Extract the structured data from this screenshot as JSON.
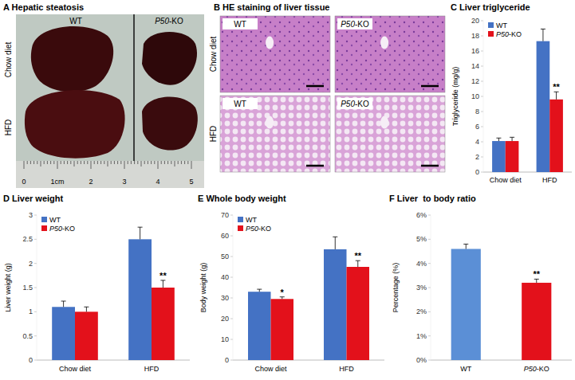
{
  "panel_a": {
    "letter": "A",
    "title": "Hepatic steatosis",
    "columns": [
      "WT",
      "P50-KO"
    ],
    "rows": [
      "Chow diet",
      "HFD"
    ],
    "ruler_labels": [
      "0",
      "1cm",
      "2",
      "3",
      "4",
      "5"
    ]
  },
  "panel_b": {
    "letter": "B",
    "title": "HE staining of liver tissue",
    "columns": [
      "WT",
      "P50-KO"
    ],
    "rows": [
      "Chow diet",
      "HFD"
    ]
  },
  "chart_data": [
    {
      "type": "bar",
      "panel": "C",
      "title": "Liver triglyceride",
      "y_label": "Triglyceride (mg/g)",
      "categories": [
        "Chow diet",
        "HFD"
      ],
      "series": [
        {
          "name": "WT",
          "color": "#4472c4",
          "values": [
            4.1,
            17.3
          ],
          "errors": [
            0.4,
            1.6
          ]
        },
        {
          "name": "P50-KO",
          "color": "#e3111b",
          "values": [
            4.1,
            9.6
          ],
          "errors": [
            0.5,
            1.0
          ],
          "significance": [
            null,
            "**"
          ]
        }
      ],
      "ylim": [
        0,
        20
      ],
      "yticks": [
        0,
        2,
        4,
        6,
        8,
        10,
        12,
        14,
        16,
        18,
        20
      ],
      "grid": false,
      "legend": "top-left"
    },
    {
      "type": "bar",
      "panel": "D",
      "title": "Liver weight",
      "y_label": "Liver weight (g)",
      "categories": [
        "Chow diet",
        "HFD"
      ],
      "series": [
        {
          "name": "WT",
          "color": "#4472c4",
          "values": [
            1.1,
            2.5
          ],
          "errors": [
            0.12,
            0.25
          ]
        },
        {
          "name": "P50-KO",
          "color": "#e3111b",
          "values": [
            1.0,
            1.5
          ],
          "errors": [
            0.1,
            0.15
          ],
          "significance": [
            null,
            "**"
          ]
        }
      ],
      "ylim": [
        0,
        3
      ],
      "yticks": [
        0,
        0.5,
        1,
        1.5,
        2,
        2.5,
        3
      ],
      "grid": false,
      "legend": "top-left"
    },
    {
      "type": "bar",
      "panel": "E",
      "title": "Whole body weight",
      "y_label": "Body weight (g)",
      "categories": [
        "Chow diet",
        "HFD"
      ],
      "series": [
        {
          "name": "WT",
          "color": "#4472c4",
          "values": [
            33,
            53.5
          ],
          "errors": [
            1.2,
            6
          ]
        },
        {
          "name": "P50-KO",
          "color": "#e3111b",
          "values": [
            29.5,
            45
          ],
          "errors": [
            1,
            3
          ],
          "significance": [
            "*",
            "**"
          ]
        }
      ],
      "ylim": [
        0,
        70
      ],
      "yticks": [
        0,
        10,
        20,
        30,
        40,
        50,
        60,
        70
      ],
      "grid": false,
      "legend": "top-left"
    },
    {
      "type": "bar",
      "panel": "F",
      "title": "Liver  to body ratio",
      "y_label": "Percentage (%)",
      "categories": [
        "WT",
        "P50-KO"
      ],
      "series": [
        {
          "name": "Liver to body ratio",
          "colors": [
            "#5b8fd6",
            "#e3111b"
          ],
          "values": [
            4.6,
            3.2
          ],
          "errors": [
            0.2,
            0.15
          ],
          "significance": [
            null,
            "**"
          ]
        }
      ],
      "ylim": [
        0,
        6
      ],
      "yticks": [
        {
          "value": 0,
          "label": "0%"
        },
        {
          "value": 1,
          "label": "1%"
        },
        {
          "value": 2,
          "label": "2%"
        },
        {
          "value": 3,
          "label": "3%"
        },
        {
          "value": 4,
          "label": "4%"
        },
        {
          "value": 5,
          "label": "5%"
        },
        {
          "value": 6,
          "label": "6%"
        }
      ],
      "grid": false
    }
  ]
}
